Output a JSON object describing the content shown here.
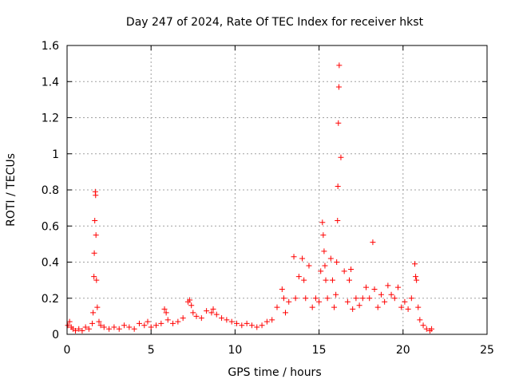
{
  "chart_data": {
    "type": "scatter",
    "title": "Day 247 of 2024, Rate Of TEC Index for receiver hkst",
    "xlabel": "GPS time / hours",
    "ylabel": "ROTI / TECUs",
    "xlim": [
      0,
      25
    ],
    "ylim": [
      0,
      1.6
    ],
    "xticks": [
      "0",
      "5",
      "10",
      "15",
      "20",
      "25"
    ],
    "yticks": [
      "0",
      "0.2",
      "0.4",
      "0.6",
      "0.8",
      "1",
      "1.2",
      "1.4",
      "1.6"
    ],
    "grid": true,
    "marker": "+",
    "marker_color": "#ff0000",
    "x": [
      0.05,
      0.15,
      0.25,
      0.35,
      0.5,
      0.7,
      0.9,
      1.1,
      1.3,
      1.5,
      1.55,
      1.6,
      1.62,
      1.65,
      1.68,
      1.7,
      1.72,
      1.75,
      1.8,
      1.9,
      2.0,
      2.2,
      2.5,
      2.8,
      3.1,
      3.4,
      3.7,
      4.0,
      4.3,
      4.6,
      4.8,
      5.0,
      5.3,
      5.6,
      5.8,
      5.9,
      6.0,
      6.3,
      6.6,
      6.9,
      7.2,
      7.3,
      7.4,
      7.5,
      7.7,
      8.0,
      8.3,
      8.6,
      8.7,
      8.9,
      9.2,
      9.5,
      9.8,
      10.1,
      10.4,
      10.7,
      11.0,
      11.3,
      11.6,
      11.9,
      12.2,
      12.5,
      12.8,
      12.9,
      13.0,
      13.2,
      13.5,
      13.6,
      13.8,
      14.0,
      14.1,
      14.2,
      14.4,
      14.6,
      14.8,
      15.0,
      15.1,
      15.2,
      15.25,
      15.3,
      15.35,
      15.4,
      15.5,
      15.7,
      15.8,
      15.9,
      16.0,
      16.05,
      16.1,
      16.12,
      16.15,
      16.18,
      16.2,
      16.3,
      16.5,
      16.7,
      16.8,
      16.9,
      17.0,
      17.2,
      17.4,
      17.6,
      17.8,
      18.0,
      18.2,
      18.3,
      18.5,
      18.7,
      18.9,
      19.1,
      19.3,
      19.5,
      19.7,
      19.9,
      20.1,
      20.3,
      20.5,
      20.7,
      20.75,
      20.8,
      20.9,
      21.0,
      21.2,
      21.4,
      21.6,
      21.7
    ],
    "y": [
      0.05,
      0.07,
      0.04,
      0.03,
      0.02,
      0.03,
      0.02,
      0.04,
      0.03,
      0.06,
      0.12,
      0.32,
      0.45,
      0.63,
      0.79,
      0.77,
      0.55,
      0.3,
      0.15,
      0.07,
      0.05,
      0.04,
      0.03,
      0.04,
      0.03,
      0.05,
      0.04,
      0.03,
      0.06,
      0.05,
      0.07,
      0.04,
      0.05,
      0.06,
      0.14,
      0.12,
      0.08,
      0.06,
      0.07,
      0.09,
      0.18,
      0.19,
      0.16,
      0.12,
      0.1,
      0.09,
      0.13,
      0.12,
      0.14,
      0.11,
      0.09,
      0.08,
      0.07,
      0.06,
      0.05,
      0.06,
      0.05,
      0.04,
      0.05,
      0.07,
      0.08,
      0.15,
      0.25,
      0.2,
      0.12,
      0.18,
      0.43,
      0.2,
      0.32,
      0.42,
      0.3,
      0.2,
      0.38,
      0.15,
      0.2,
      0.18,
      0.35,
      0.62,
      0.55,
      0.46,
      0.38,
      0.3,
      0.2,
      0.42,
      0.3,
      0.15,
      0.22,
      0.4,
      0.63,
      0.82,
      1.17,
      1.37,
      1.49,
      0.98,
      0.35,
      0.18,
      0.3,
      0.36,
      0.14,
      0.2,
      0.16,
      0.2,
      0.26,
      0.2,
      0.51,
      0.25,
      0.15,
      0.22,
      0.18,
      0.27,
      0.22,
      0.2,
      0.26,
      0.15,
      0.18,
      0.14,
      0.2,
      0.39,
      0.32,
      0.3,
      0.15,
      0.08,
      0.05,
      0.03,
      0.02,
      0.03
    ]
  }
}
